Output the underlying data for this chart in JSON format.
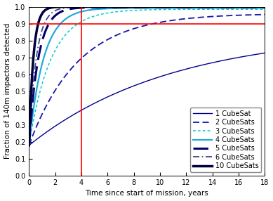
{
  "xlabel": "Time since start of mission, years",
  "ylabel": "Fraction of 140m impactors detected",
  "xlim": [
    0,
    18
  ],
  "ylim": [
    0,
    1.0
  ],
  "xticks": [
    0,
    2,
    4,
    6,
    8,
    10,
    12,
    14,
    16,
    18
  ],
  "yticks": [
    0,
    0.1,
    0.2,
    0.3,
    0.4,
    0.5,
    0.6,
    0.7,
    0.8,
    0.9,
    1.0
  ],
  "red_vline": 4,
  "red_hline": 0.9,
  "curves": [
    {
      "label": "1 CubeSat",
      "y0": 0.18,
      "k": 0.092,
      "asymp": 0.855,
      "color": "#00008B",
      "lw": 1.0,
      "dashes": null
    },
    {
      "label": "2 CubeSats",
      "y0": 0.18,
      "k": 0.27,
      "asymp": 0.96,
      "color": "#1515aa",
      "lw": 1.3,
      "dashes": [
        5,
        2.5
      ]
    },
    {
      "label": "3 CubeSats",
      "y0": 0.18,
      "k": 0.6,
      "asymp": 0.985,
      "color": "#00CCCC",
      "lw": 1.1,
      "dashes": [
        2.5,
        2
      ]
    },
    {
      "label": "4 CubeSats",
      "y0": 0.18,
      "k": 0.9,
      "asymp": 0.993,
      "color": "#22AADD",
      "lw": 1.6,
      "dashes": null
    },
    {
      "label": "5 CubeSats",
      "y0": 0.18,
      "k": 1.4,
      "asymp": 0.997,
      "color": "#00006B",
      "lw": 2.2,
      "dashes": [
        7,
        3
      ]
    },
    {
      "label": "6 CubeSats",
      "y0": 0.18,
      "k": 1.8,
      "asymp": 0.999,
      "color": "#444488",
      "lw": 1.3,
      "dashes": [
        5,
        2,
        1,
        2
      ]
    },
    {
      "label": "10 CubeSats",
      "y0": 0.18,
      "k": 3.0,
      "asymp": 1.0,
      "color": "#00003A",
      "lw": 2.5,
      "dashes": null
    }
  ],
  "legend_fontsize": 7,
  "axis_fontsize": 7.5,
  "tick_fontsize": 7
}
